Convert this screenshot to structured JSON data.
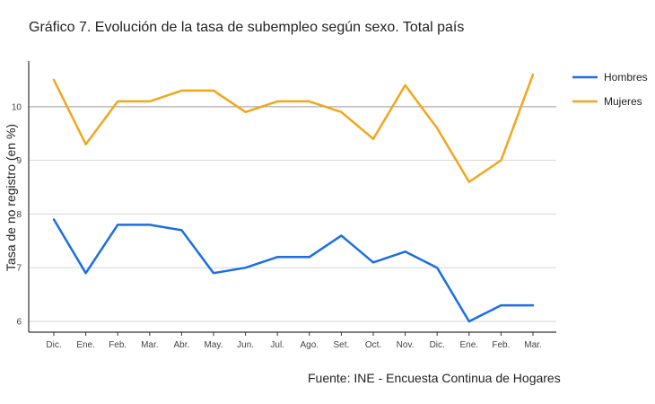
{
  "chart_data": {
    "type": "line",
    "title": "Gráfico 7. Evolución de la tasa de subempleo según sexo. Total país",
    "xlabel": "",
    "ylabel": "Tasa de no registro (en %)",
    "source": "Fuente: INE - Encuesta Continua de Hogares",
    "categories": [
      "Dic.",
      "Ene.",
      "Feb.",
      "Mar.",
      "Abr.",
      "May.",
      "Jun.",
      "Jul.",
      "Ago.",
      "Set.",
      "Oct.",
      "Nov.",
      "Dic.",
      "Ene.",
      "Feb.",
      "Mar."
    ],
    "series": [
      {
        "name": "Hombres",
        "color": "#1a6ee6",
        "values": [
          7.9,
          6.9,
          7.8,
          7.8,
          7.7,
          6.9,
          7.0,
          7.2,
          7.2,
          7.6,
          7.1,
          7.3,
          7.0,
          6.0,
          6.3,
          6.3
        ]
      },
      {
        "name": "Mujeres",
        "color": "#f2a61c",
        "values": [
          10.5,
          9.3,
          10.1,
          10.1,
          10.3,
          10.3,
          9.9,
          10.1,
          10.1,
          9.9,
          9.4,
          10.4,
          9.6,
          8.6,
          9.0,
          10.6
        ]
      }
    ],
    "yticks": [
      6,
      7,
      8,
      9,
      10
    ],
    "ylim": [
      5.8,
      10.85
    ],
    "grid": true,
    "legend": "right"
  }
}
